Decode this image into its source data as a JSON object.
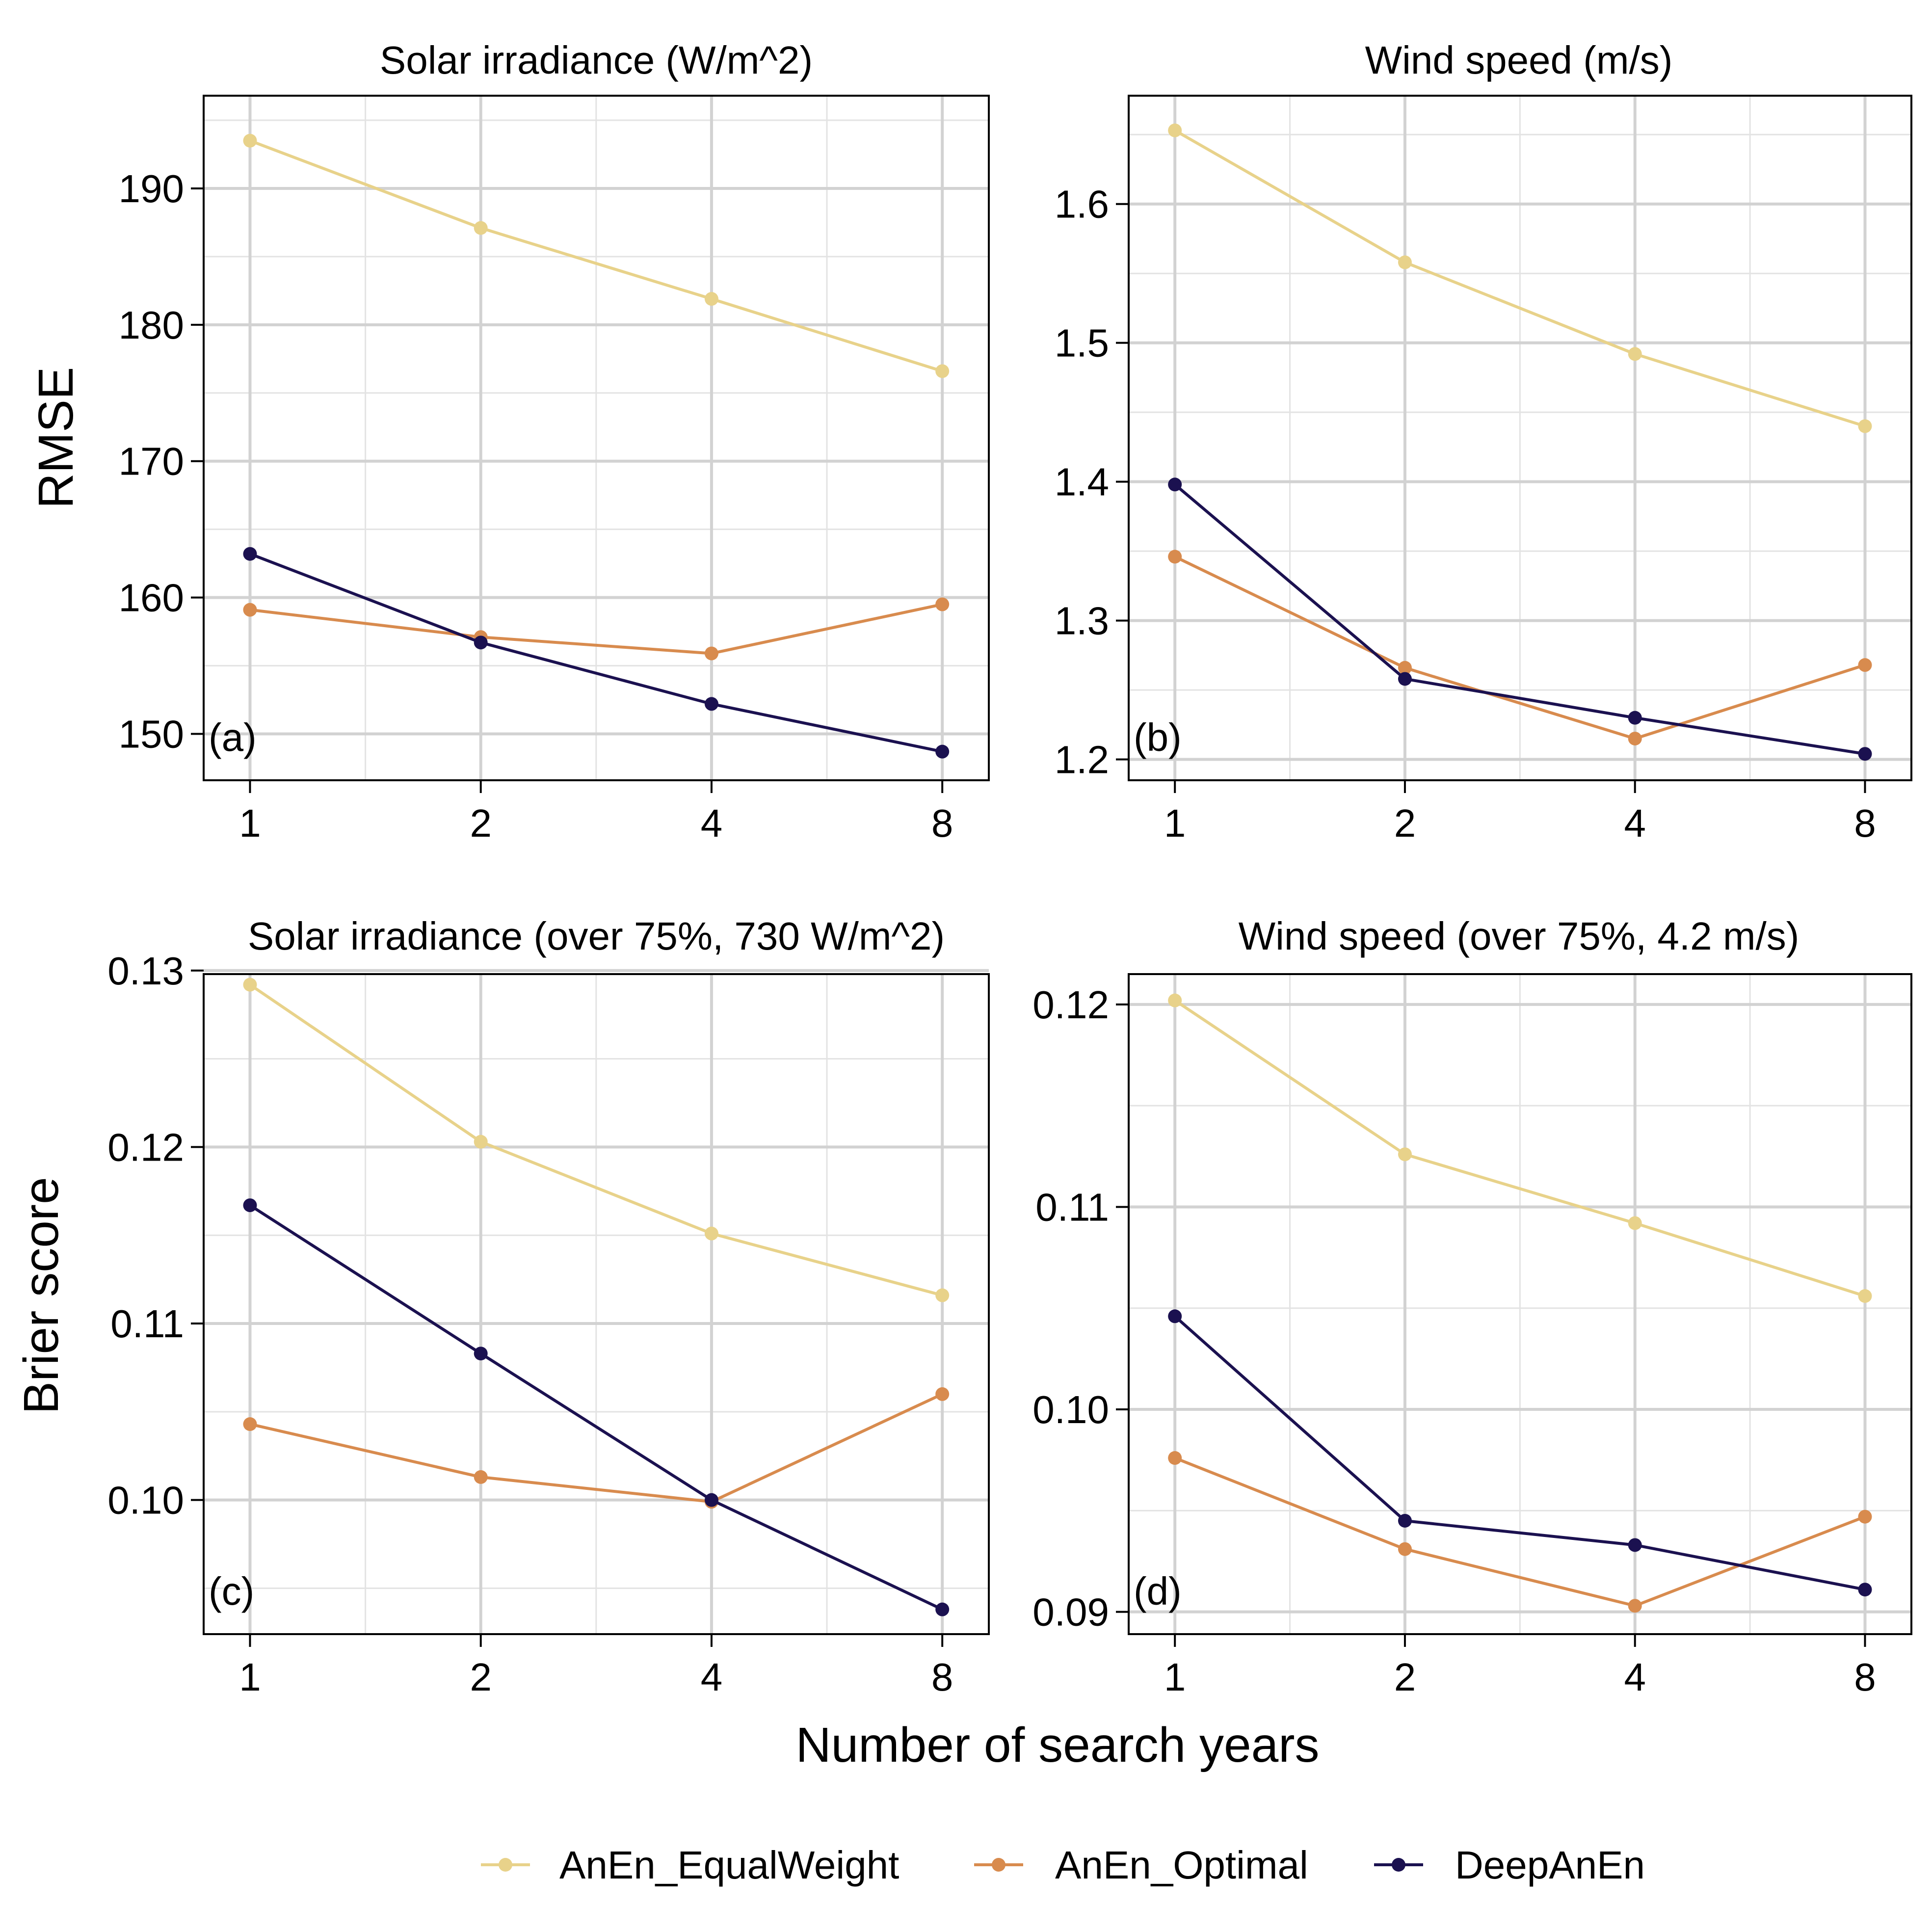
{
  "shared": {
    "xlabel": "Number of search years",
    "ylabel_top": "RMSE",
    "ylabel_bottom": "Brier score"
  },
  "legend": [
    {
      "name": "AnEn_EqualWeight",
      "color": "#e8d28a"
    },
    {
      "name": "AnEn_Optimal",
      "color": "#d88b4e"
    },
    {
      "name": "DeepAnEn",
      "color": "#1b1150"
    }
  ],
  "chart_data": [
    {
      "type": "line",
      "title": "Solar irradiance (W/m^2)",
      "tag": "(a)",
      "xlabel": "Number of search years",
      "ylabel": "RMSE",
      "x": [
        1,
        2,
        4,
        8
      ],
      "xticks": [
        "1",
        "2",
        "4",
        "8"
      ],
      "xscale": "log2",
      "xlim": [
        0.87,
        9.2
      ],
      "ylim": [
        146.6,
        196.8
      ],
      "yticks": [
        150,
        160,
        170,
        180,
        190
      ],
      "ytick_labels": [
        "150",
        "160",
        "170",
        "180",
        "190"
      ],
      "grid": true,
      "series": [
        {
          "name": "AnEn_EqualWeight",
          "values": [
            193.5,
            187.1,
            181.9,
            176.6
          ]
        },
        {
          "name": "AnEn_Optimal",
          "values": [
            159.1,
            157.1,
            155.9,
            159.5
          ]
        },
        {
          "name": "DeepAnEn",
          "values": [
            163.2,
            156.7,
            152.2,
            148.7
          ]
        }
      ]
    },
    {
      "type": "line",
      "title": "Wind speed (m/s)",
      "tag": "(b)",
      "xlabel": "Number of search years",
      "ylabel": "",
      "x": [
        1,
        2,
        4,
        8
      ],
      "xticks": [
        "1",
        "2",
        "4",
        "8"
      ],
      "xscale": "log2",
      "xlim": [
        0.87,
        9.2
      ],
      "ylim": [
        1.185,
        1.678
      ],
      "yticks": [
        1.2,
        1.3,
        1.4,
        1.5,
        1.6
      ],
      "ytick_labels": [
        "1.2",
        "1.3",
        "1.4",
        "1.5",
        "1.6"
      ],
      "grid": true,
      "series": [
        {
          "name": "AnEn_EqualWeight",
          "values": [
            1.653,
            1.558,
            1.492,
            1.44
          ]
        },
        {
          "name": "AnEn_Optimal",
          "values": [
            1.346,
            1.266,
            1.215,
            1.268
          ]
        },
        {
          "name": "DeepAnEn",
          "values": [
            1.398,
            1.258,
            1.23,
            1.204
          ]
        }
      ]
    },
    {
      "type": "line",
      "title": "Solar irradiance (over 75%, 730 W/m^2)",
      "tag": "(c)",
      "xlabel": "Number of search years",
      "ylabel": "Brier score",
      "x": [
        1,
        2,
        4,
        8
      ],
      "xticks": [
        "1",
        "2",
        "4",
        "8"
      ],
      "xscale": "log2",
      "xlim": [
        0.87,
        9.2
      ],
      "ylim": [
        0.0924,
        0.1298
      ],
      "yticks": [
        0.1,
        0.11,
        0.12,
        0.13
      ],
      "ytick_labels": [
        "0.10",
        "0.11",
        "0.12",
        "0.13"
      ],
      "grid": true,
      "series": [
        {
          "name": "AnEn_EqualWeight",
          "values": [
            0.1292,
            0.1203,
            0.1151,
            0.1116
          ]
        },
        {
          "name": "AnEn_Optimal",
          "values": [
            0.1043,
            0.1013,
            0.0999,
            0.106
          ]
        },
        {
          "name": "DeepAnEn",
          "values": [
            0.1167,
            0.1083,
            0.1,
            0.0938
          ]
        }
      ]
    },
    {
      "type": "line",
      "title": "Wind speed (over 75%, 4.2 m/s)",
      "tag": "(d)",
      "xlabel": "Number of search years",
      "ylabel": "",
      "x": [
        1,
        2,
        4,
        8
      ],
      "xticks": [
        "1",
        "2",
        "4",
        "8"
      ],
      "xscale": "log2",
      "xlim": [
        0.87,
        9.2
      ],
      "ylim": [
        0.0889,
        0.1215
      ],
      "yticks": [
        0.09,
        0.1,
        0.11,
        0.12
      ],
      "ytick_labels": [
        "0.09",
        "0.10",
        "0.11",
        "0.12"
      ],
      "grid": true,
      "series": [
        {
          "name": "AnEn_EqualWeight",
          "values": [
            0.1202,
            0.1126,
            0.1092,
            0.1056
          ]
        },
        {
          "name": "AnEn_Optimal",
          "values": [
            0.0976,
            0.0931,
            0.0903,
            0.0947
          ]
        },
        {
          "name": "DeepAnEn",
          "values": [
            0.1046,
            0.0945,
            0.0933,
            0.0911
          ]
        }
      ]
    }
  ]
}
